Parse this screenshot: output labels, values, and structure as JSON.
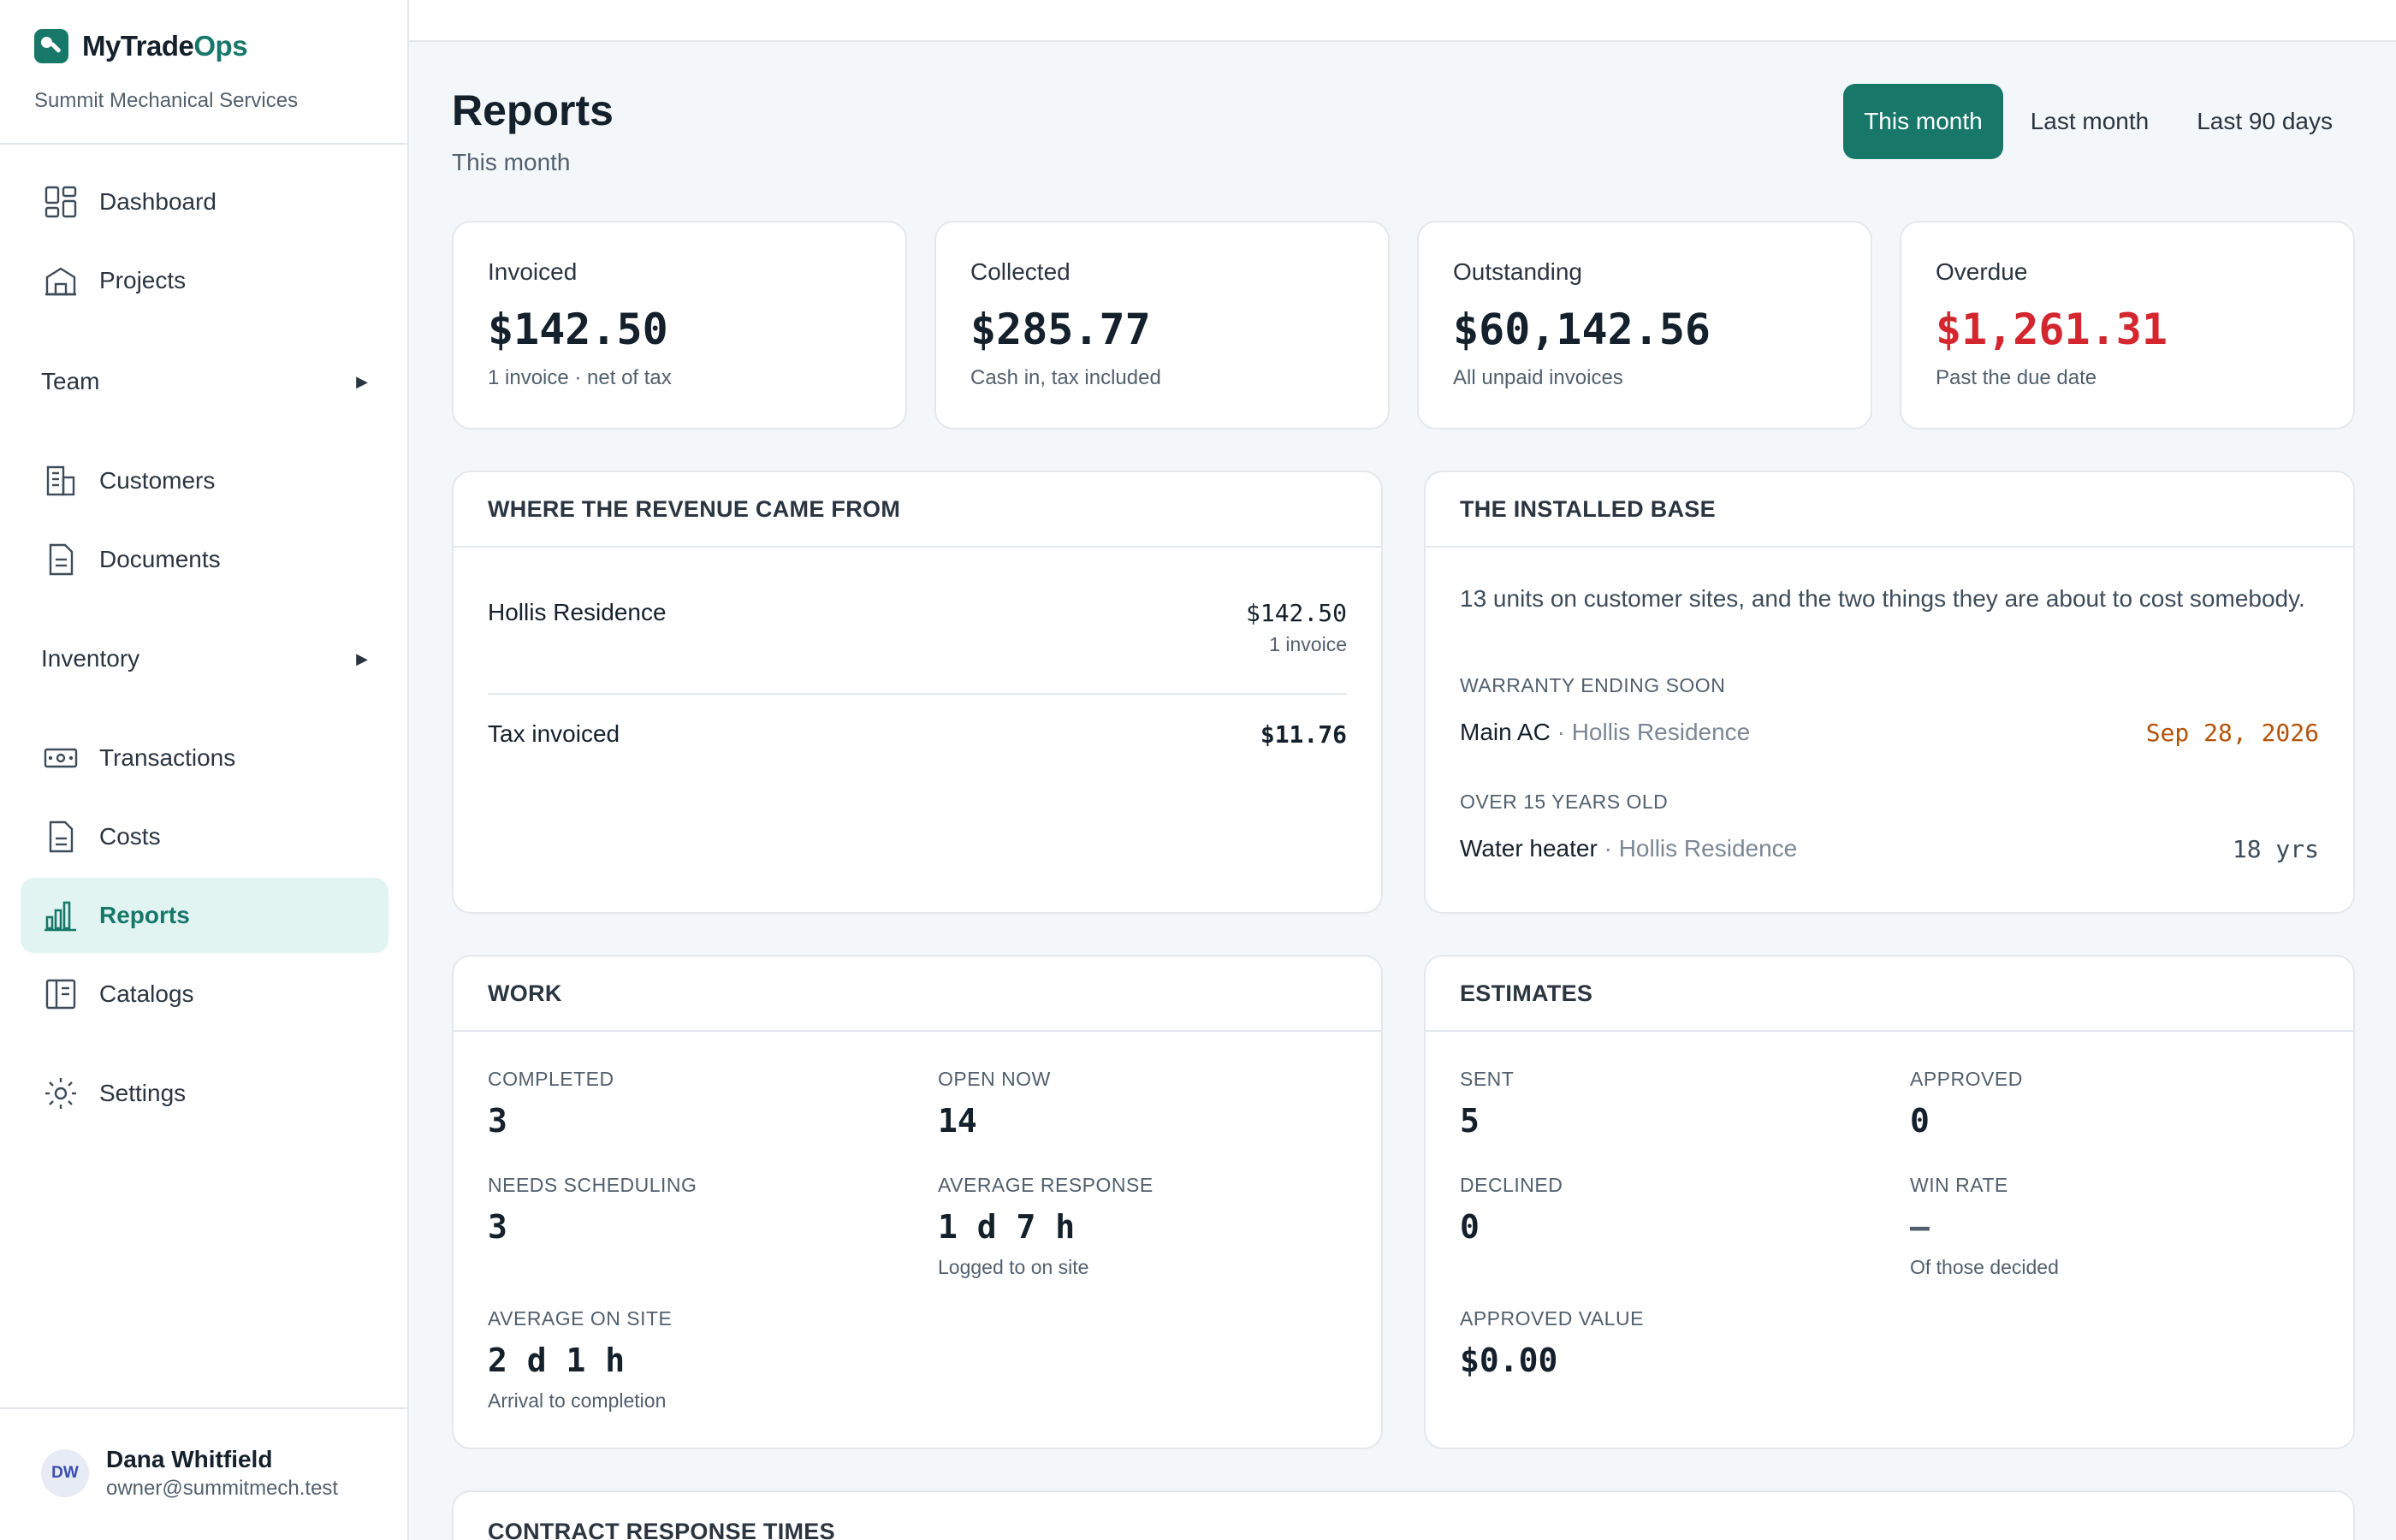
{
  "app": {
    "name_part1": "MyTrade",
    "name_part2": "Ops",
    "company": "Summit Mechanical Services",
    "accent_color": "#17786a"
  },
  "sidebar": {
    "items": [
      {
        "label": "Dashboard",
        "icon": "dashboard-icon"
      },
      {
        "label": "Projects",
        "icon": "projects-icon"
      },
      {
        "label": "Team",
        "icon": "caret-right-icon"
      },
      {
        "label": "Customers",
        "icon": "customers-icon"
      },
      {
        "label": "Documents",
        "icon": "documents-icon"
      },
      {
        "label": "Inventory",
        "icon": "caret-right-icon"
      },
      {
        "label": "Transactions",
        "icon": "transactions-icon"
      },
      {
        "label": "Costs",
        "icon": "costs-icon"
      },
      {
        "label": "Reports",
        "icon": "reports-icon",
        "active": true
      },
      {
        "label": "Catalogs",
        "icon": "catalogs-icon"
      },
      {
        "label": "Settings",
        "icon": "settings-icon"
      }
    ]
  },
  "user": {
    "initials": "DW",
    "name": "Dana Whitfield",
    "email": "owner@summitmech.test"
  },
  "header": {
    "title": "Reports",
    "subtitle": "This month",
    "ranges": [
      "This month",
      "Last month",
      "Last 90 days"
    ],
    "active_range": "This month"
  },
  "kpis": [
    {
      "label": "Invoiced",
      "value": "$142.50",
      "note": "1 invoice · net of tax"
    },
    {
      "label": "Collected",
      "value": "$285.77",
      "note": "Cash in, tax included"
    },
    {
      "label": "Outstanding",
      "value": "$60,142.56",
      "note": "All unpaid invoices"
    },
    {
      "label": "Overdue",
      "value": "$1,261.31",
      "note": "Past the due date",
      "color": "#d3262e"
    }
  ],
  "revenue": {
    "title": "WHERE THE REVENUE CAME FROM",
    "rows": [
      {
        "name": "Hollis Residence",
        "amount": "$142.50",
        "sub": "1 invoice"
      }
    ],
    "tax_label": "Tax invoiced",
    "tax_amount": "$11.76"
  },
  "installed_base": {
    "title": "THE INSTALLED BASE",
    "intro": "13 units on customer sites, and the two things they are about to cost somebody.",
    "warranty_caption": "WARRANTY ENDING SOON",
    "warranty_item": "Main AC",
    "warranty_site": "· Hollis Residence",
    "warranty_date": "Sep 28, 2026",
    "old_caption": "OVER 15 YEARS OLD",
    "old_item": "Water heater",
    "old_site": "· Hollis Residence",
    "old_age": "18 yrs"
  },
  "work": {
    "title": "WORK",
    "completed_label": "COMPLETED",
    "completed": "3",
    "open_label": "OPEN NOW",
    "open": "14",
    "needs_label": "NEEDS SCHEDULING",
    "needs": "3",
    "avg_response_label": "AVERAGE RESPONSE",
    "avg_response": "1 d 7 h",
    "avg_response_note": "Logged to on site",
    "avg_onsite_label": "AVERAGE ON SITE",
    "avg_onsite": "2 d 1 h",
    "avg_onsite_note": "Arrival to completion"
  },
  "estimates": {
    "title": "ESTIMATES",
    "sent_label": "SENT",
    "sent": "5",
    "approved_label": "APPROVED",
    "approved": "0",
    "declined_label": "DECLINED",
    "declined": "0",
    "winrate_label": "WIN RATE",
    "winrate": "—",
    "winrate_note": "Of those decided",
    "approved_value_label": "APPROVED VALUE",
    "approved_value": "$0.00"
  },
  "contract": {
    "title": "CONTRACT RESPONSE TIMES"
  }
}
